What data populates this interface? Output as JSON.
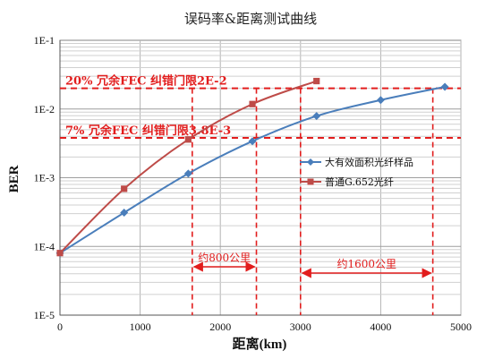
{
  "chart_data": {
    "type": "line",
    "title": "误码率&距离测试曲线",
    "xlabel": "距离(km)",
    "ylabel": "BER",
    "xlim": [
      0,
      5000
    ],
    "ylim": [
      1e-05,
      0.1
    ],
    "yscale": "log",
    "grid": true,
    "x_ticks": [
      "0",
      "1000",
      "2000",
      "3000",
      "4000",
      "5000"
    ],
    "y_ticks": [
      "1E-1",
      "1E-2",
      "1E-3",
      "1E-4",
      "1E-5"
    ],
    "legend_position": "right",
    "series": [
      {
        "name": "大有效面积光纤样品",
        "color": "#4a7ebb",
        "marker": "diamond",
        "x": [
          0,
          800,
          1600,
          2400,
          3200,
          4000,
          4800
        ],
        "y": [
          8e-05,
          0.00031,
          0.00115,
          0.0034,
          0.0079,
          0.0135,
          0.021
        ]
      },
      {
        "name": "普通G.652光纤",
        "color": "#be4b48",
        "marker": "square",
        "x": [
          0,
          800,
          1600,
          2400,
          3200
        ],
        "y": [
          8e-05,
          0.00069,
          0.0036,
          0.0118,
          0.0255
        ]
      }
    ],
    "annotations": [
      {
        "text": "20% 冗余FEC 纠错门限2E-2",
        "y": 0.02
      },
      {
        "text": "7% 冗余FEC 纠错门限3.8E-3",
        "y": 0.0038
      },
      {
        "text": "约800公里",
        "x_range": [
          1650,
          2450
        ]
      },
      {
        "text": "约1600公里",
        "x_range": [
          3000,
          4650
        ]
      }
    ],
    "vertical_markers_x": [
      1650,
      2450,
      3000,
      4650
    ],
    "threshold_color": "#e21d1d"
  }
}
